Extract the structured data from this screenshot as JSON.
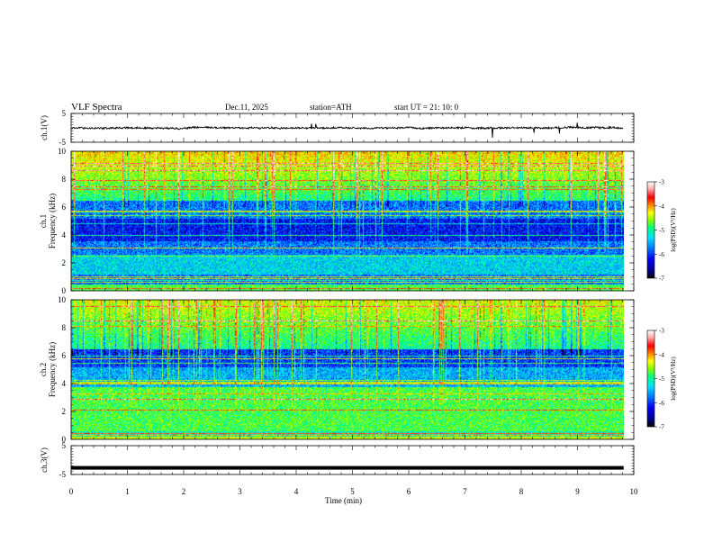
{
  "header": {
    "title": "VLF  Spectra",
    "date": "Dec.11, 2025",
    "station": "station=ATH",
    "start": "start  UT  =   21: 10: 0"
  },
  "colors": {
    "spectrogram_scale": [
      "#000000",
      "#00008b",
      "#0000ff",
      "#0080ff",
      "#00e0ff",
      "#00ff80",
      "#80ff00",
      "#ffff00",
      "#ff8000",
      "#ff0000",
      "#ffb0b0",
      "#ffffff"
    ],
    "trace": "#000000",
    "background": "#ffffff"
  },
  "chart_data": [
    {
      "type": "line",
      "panel": "ch1-waveform",
      "ylabel": "ch.1(V)",
      "ylim": [
        -5,
        5
      ],
      "yticks": [
        "5",
        "-5"
      ],
      "xlim": [
        0,
        10
      ],
      "description_values": {
        "baseline_v": 0,
        "typical_amplitude_v": 0.6
      }
    },
    {
      "type": "heatmap",
      "panel": "ch1-spectrogram",
      "ylabel": "ch.1\nFrequency  (kHz)",
      "ylim": [
        0,
        10
      ],
      "yticks": [
        "0",
        "2",
        "4",
        "6",
        "8",
        "10"
      ],
      "xlim": [
        0,
        10
      ],
      "colorbar": {
        "label": "log(PSD)(V²/Hz)",
        "ticks": [
          "-3",
          "-4",
          "-5",
          "-6",
          "-7"
        ],
        "range": [
          -7,
          -3
        ]
      }
    },
    {
      "type": "heatmap",
      "panel": "ch2-spectrogram",
      "ylabel": "ch.2\nFrequency  (kHz)",
      "ylim": [
        0,
        10
      ],
      "yticks": [
        "0",
        "2",
        "4",
        "6",
        "8",
        "10"
      ],
      "xlim": [
        0,
        10
      ],
      "colorbar": {
        "label": "log(PSD)(V²/Hz)",
        "ticks": [
          "-3",
          "-4",
          "-5",
          "-6",
          "-7"
        ],
        "range": [
          -7,
          -3
        ]
      }
    },
    {
      "type": "line",
      "panel": "ch3-waveform",
      "ylabel": "ch.3(V)",
      "ylim": [
        -5,
        5
      ],
      "yticks": [
        "5",
        "-5"
      ],
      "xlim": [
        0,
        10
      ],
      "description_values": {
        "baseline_v": -2.7
      }
    }
  ],
  "xaxis": {
    "label": "Time  (min)",
    "ticks": [
      "0",
      "1",
      "2",
      "3",
      "4",
      "5",
      "6",
      "7",
      "8",
      "9",
      "10"
    ],
    "data_end_min": 9.82
  }
}
